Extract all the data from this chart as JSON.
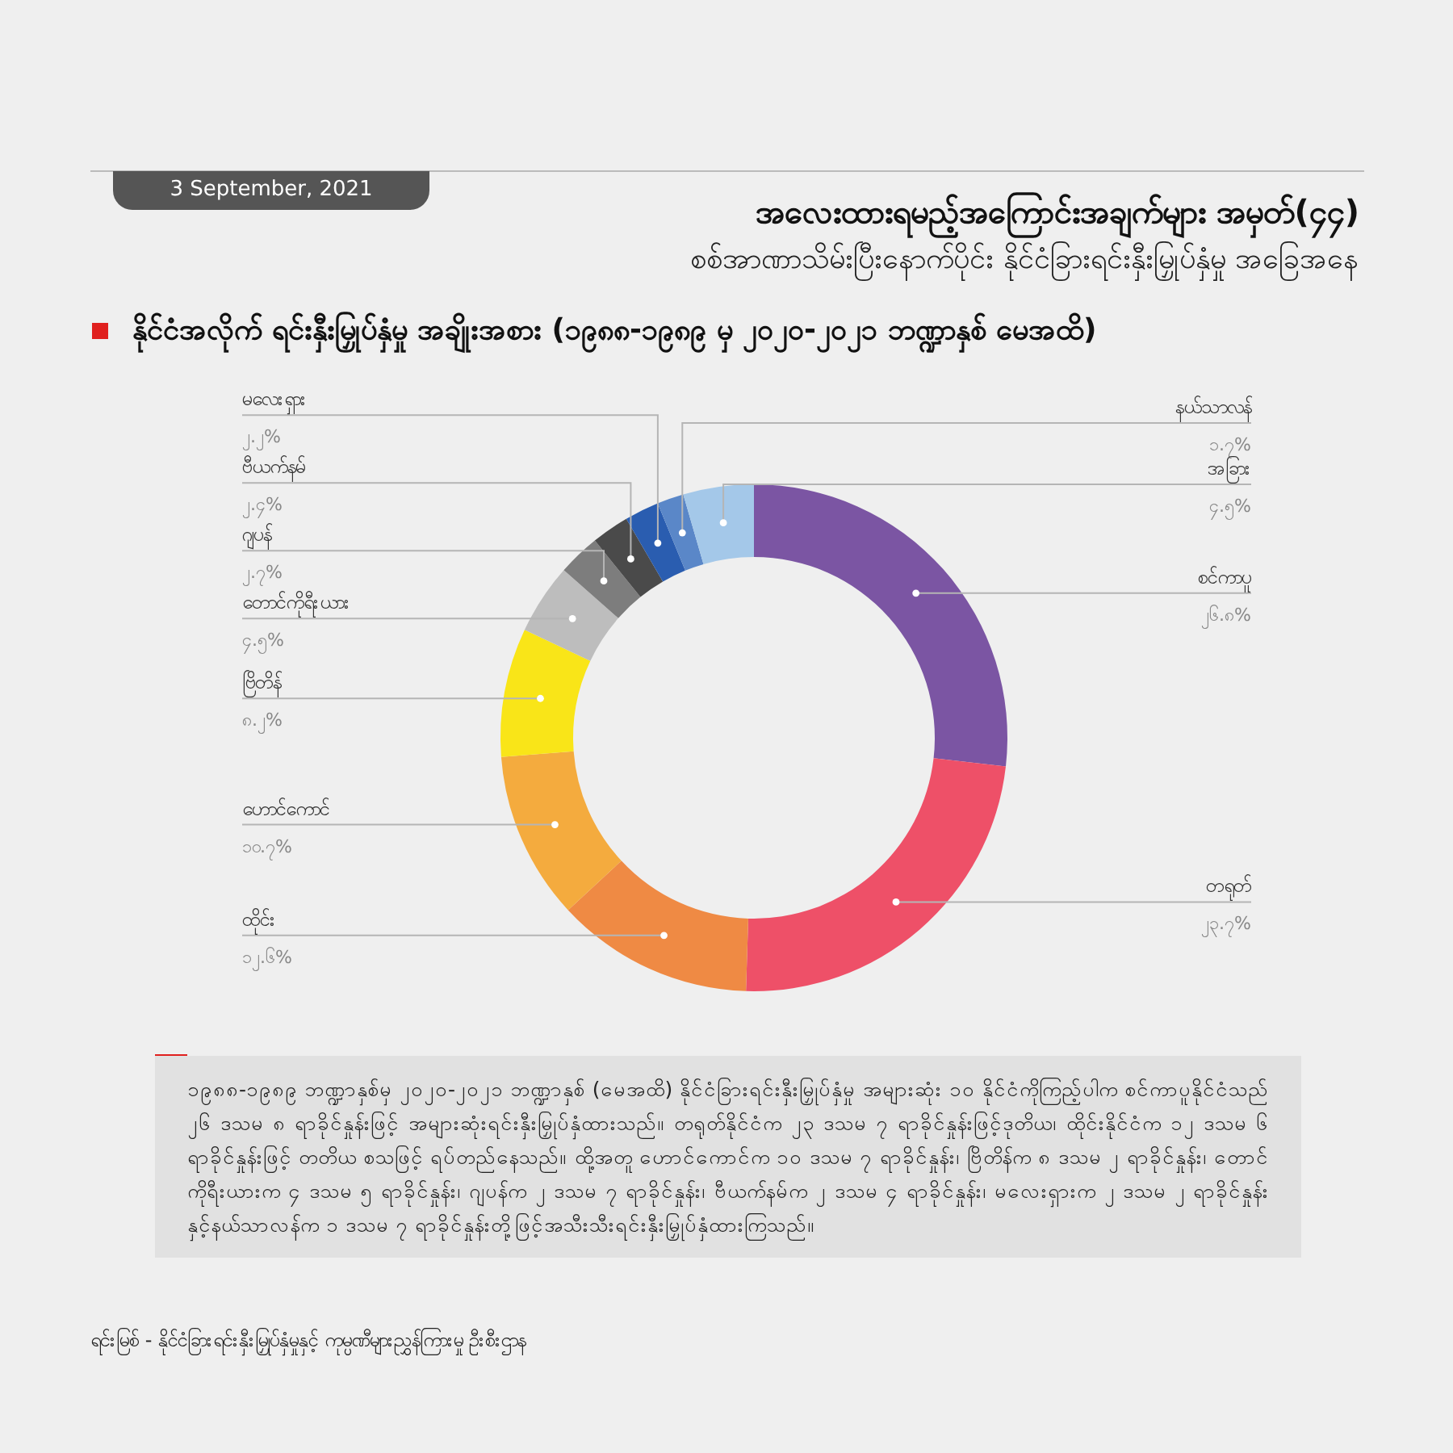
{
  "chart_data": {
    "type": "donut",
    "title": "အလေးထားရမည့်အကြောင်းအချက်များ အမှတ်(၄၄)",
    "subtitle": "စစ်အာဏာသိမ်းပြီးနောက်ပိုင်း နိုင်ငံခြားရင်းနှီးမြှုပ်နှံမှု အခြေအနေ",
    "annotations": [
      "3 September, 2021",
      "နိုင်ငံအလိုက် ရင်းနှီးမြှုပ်နှံမှု အချိုးအစား (၁၉၈၈-၁၉၈၉ မှ ၂၀၂၀-၂၀၂၁ ဘဏ္ဍာနှစ် မေအထိ)",
      "၁၉၈၈-၁၉၈၉ ဘဏ္ဍာနှစ်မှ ၂၀၂၀-၂၀၂၁ ဘဏ္ဍာနှစ် (မေအထိ) နိုင်ငံခြားရင်းနှီးမြှုပ်နှံမှု အများဆုံး ၁၀ နိုင်ငံကိုကြည့်ပါက စင်ကာပူနိုင်ငံသည် ၂၆ ဒသမ ၈ ရာခိုင်နှုန်းဖြင့် အများဆုံးရင်းနှီးမြှုပ်နှံထားသည်။ တရုတ်နိုင်ငံက ၂၃ ဒသမ ၇ ရာခိုင်နှုန်းဖြင့်ဒုတိယ၊ ထိုင်းနိုင်ငံက ၁၂ ဒသမ ၆ ရာခိုင်နှုန်းဖြင့် တတိယ စသဖြင့် ရပ်တည်နေသည်။ ထို့အတူ ဟောင်ကောင်က ၁၀ ဒသမ ၇ ရာခိုင်နှုန်း၊ ဗြိတိန်က ၈ ဒသမ ၂ ရာခိုင်နှုန်း၊ တောင်ကိုရီးယားက ၄ ဒသမ ၅ ရာခိုင်နှုန်း၊ ဂျပန်က ၂ ဒသမ ၇ ရာခိုင်နှုန်း၊ ဗီယက်နမ်က ၂ ဒသမ ၄ ရာခိုင်နှုန်း၊ မလေးရှားက ၂ ဒသမ ၂ ရာခိုင်နှုန်းနှင့်နယ်သာလန်က ၁ ဒသမ ၇ ရာခိုင်နှုန်းတို့ဖြင့်အသီးသီးရင်းနှီးမြှုပ်နှံထားကြသည်။",
      "ရင်းမြစ် -    နိုင်ငံခြားရင်းနှီးမြှုပ်နှံမှုနှင့် ကုမ္ပဏီများညွှန်ကြားမှု ဦးစီးဌာန"
    ],
    "categories": [
      "စင်ကာပူ",
      "တရုတ်",
      "ထိုင်း",
      "ဟောင်ကောင်",
      "ဗြိတိန်",
      "တောင်ကိုရီးယား",
      "ဂျပန်",
      "ဗီယက်နမ်",
      "မလေးရှား",
      "နယ်သာလန်",
      "အခြား"
    ],
    "values": [
      26.8,
      23.7,
      12.6,
      10.7,
      8.2,
      4.5,
      2.7,
      2.4,
      2.2,
      1.7,
      4.5
    ],
    "value_labels": [
      "၂၆.၈%",
      "၂၃.၇%",
      "၁၂.၆%",
      "၁၀.၇%",
      "၈.၂%",
      "၄.၅%",
      "၂.၇%",
      "၂.၄%",
      "၂.၂%",
      "၁.၇%",
      "၄.၅%"
    ],
    "colors": [
      "#7b55a3",
      "#ee5068",
      "#ef8a44",
      "#f4ab3e",
      "#f9e518",
      "#bdbdbd",
      "#7d7d7d",
      "#4a4a4a",
      "#2a5db0",
      "#5a87c8",
      "#a4c8e9"
    ]
  }
}
